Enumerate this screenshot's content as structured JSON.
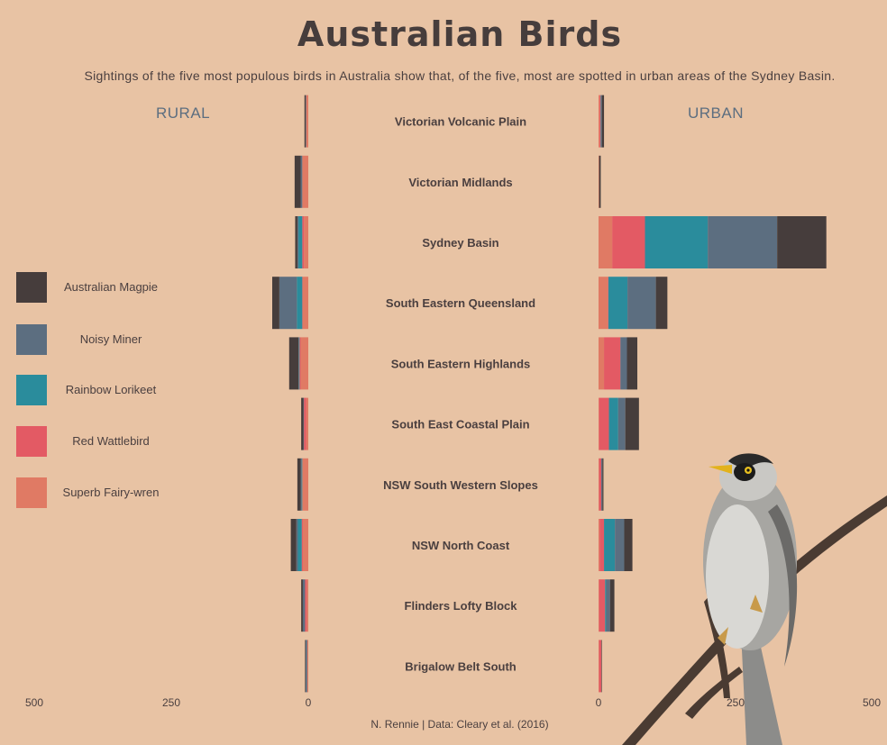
{
  "title": "Australian Birds",
  "subtitle": "Sightings of the five most populous birds in Australia show that, of the five, most are spotted in urban areas of the Sydney Basin.",
  "caption": "N. Rennie | Data: Cleary et al. (2016)",
  "panels": {
    "rural": "RURAL",
    "urban": "URBAN"
  },
  "legend": [
    {
      "label": "Australian Magpie",
      "color": "#463d3c"
    },
    {
      "label": "Noisy Miner",
      "color": "#5c6e80"
    },
    {
      "label": "Rainbow Lorikeet",
      "color": "#2a8c9c"
    },
    {
      "label": "Red Wattlebird",
      "color": "#e35a64"
    },
    {
      "label": "Superb Fairy-wren",
      "color": "#e07a64"
    }
  ],
  "chart_data": {
    "type": "bar",
    "orientation": "horizontal",
    "stacked": true,
    "series_order": [
      "Superb Fairy-wren",
      "Red Wattlebird",
      "Rainbow Lorikeet",
      "Noisy Miner",
      "Australian Magpie"
    ],
    "categories": [
      "Victorian Volcanic Plain",
      "Victorian Midlands",
      "Sydney Basin",
      "South Eastern Queensland",
      "South Eastern Highlands",
      "South East Coastal Plain",
      "NSW South Western Slopes",
      "NSW North Coast",
      "Flinders Lofty Block",
      "Brigalow Belt South"
    ],
    "rural": {
      "xlim": [
        500,
        0
      ],
      "ticks": [
        "500",
        "250",
        "0"
      ],
      "series": [
        {
          "name": "Superb Fairy-wren",
          "values": [
            4,
            11,
            8,
            10,
            14,
            4,
            11,
            10,
            3,
            2
          ]
        },
        {
          "name": "Red Wattlebird",
          "values": [
            0,
            0,
            3,
            1,
            2,
            4,
            0,
            2,
            3,
            0
          ]
        },
        {
          "name": "Rainbow Lorikeet",
          "values": [
            0,
            0,
            7,
            10,
            1,
            0,
            1,
            7,
            0,
            0
          ]
        },
        {
          "name": "Noisy Miner",
          "values": [
            1,
            3,
            2,
            32,
            1,
            1,
            2,
            3,
            4,
            3
          ]
        },
        {
          "name": "Australian Magpie",
          "values": [
            2,
            11,
            4,
            13,
            17,
            4,
            6,
            10,
            3,
            1
          ]
        }
      ]
    },
    "urban": {
      "xlim": [
        0,
        500
      ],
      "ticks": [
        "0",
        "250",
        "500"
      ],
      "series": [
        {
          "name": "Superb Fairy-wren",
          "values": [
            2,
            1,
            25,
            17,
            10,
            1,
            1,
            2,
            1,
            1
          ]
        },
        {
          "name": "Red Wattlebird",
          "values": [
            2,
            0,
            60,
            1,
            30,
            18,
            4,
            8,
            11,
            4
          ]
        },
        {
          "name": "Rainbow Lorikeet",
          "values": [
            1,
            0,
            115,
            35,
            0,
            17,
            0,
            20,
            2,
            0
          ]
        },
        {
          "name": "Noisy Miner",
          "values": [
            1,
            0,
            127,
            52,
            12,
            13,
            2,
            17,
            7,
            0
          ]
        },
        {
          "name": "Australian Magpie",
          "values": [
            4,
            3,
            90,
            21,
            19,
            25,
            2,
            15,
            8,
            1
          ]
        }
      ]
    }
  }
}
